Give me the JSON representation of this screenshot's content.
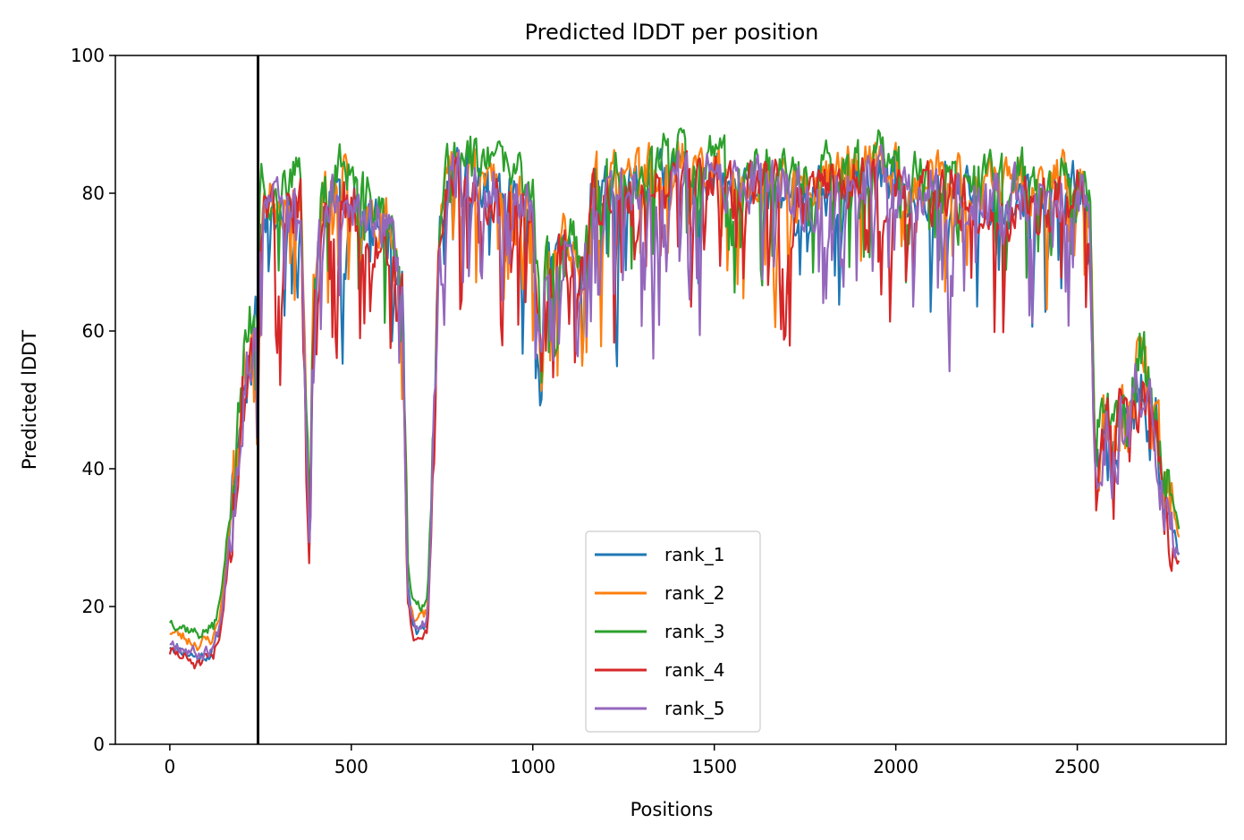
{
  "chart_data": {
    "type": "line",
    "title": "Predicted lDDT per position",
    "xlabel": "Positions",
    "ylabel": "Predicted lDDT",
    "xlim": [
      -150,
      2910
    ],
    "ylim": [
      0,
      100
    ],
    "x_ticks": [
      0,
      500,
      1000,
      1500,
      2000,
      2500
    ],
    "y_ticks": [
      0,
      20,
      40,
      60,
      80,
      100
    ],
    "grid": false,
    "legend_position": "lower-center",
    "vertical_line": {
      "x": 243,
      "color": "#000000"
    },
    "profile": {
      "x": [
        0,
        40,
        80,
        120,
        140,
        160,
        180,
        200,
        220,
        240,
        250,
        280,
        320,
        360,
        375,
        385,
        395,
        420,
        470,
        520,
        560,
        610,
        640,
        655,
        670,
        690,
        710,
        725,
        745,
        780,
        820,
        860,
        900,
        950,
        1000,
        1025,
        1035,
        1050,
        1080,
        1110,
        1140,
        1165,
        1185,
        1200,
        1250,
        1300,
        1350,
        1400,
        1450,
        1500,
        1550,
        1600,
        1650,
        1700,
        1750,
        1800,
        1850,
        1900,
        1950,
        2000,
        2050,
        2100,
        2150,
        2200,
        2250,
        2300,
        2350,
        2400,
        2450,
        2500,
        2520,
        2535,
        2550,
        2580,
        2600,
        2620,
        2640,
        2660,
        2680,
        2700,
        2720,
        2740,
        2760,
        2780
      ],
      "y": [
        15,
        14,
        13,
        14,
        18,
        28,
        38,
        50,
        58,
        62,
        79,
        76,
        77,
        79,
        45,
        27,
        62,
        77,
        80,
        77,
        75,
        73,
        66,
        22,
        17,
        17,
        18,
        40,
        76,
        82,
        83,
        80,
        80,
        79,
        76,
        52,
        68,
        67,
        72,
        70,
        68,
        82,
        78,
        79,
        80,
        80,
        81,
        82,
        80,
        81,
        79,
        80,
        81,
        79,
        78,
        79,
        81,
        82,
        82,
        80,
        79,
        80,
        80,
        79,
        79,
        78,
        79,
        78,
        79,
        80,
        77,
        75,
        40,
        46,
        40,
        48,
        45,
        50,
        54,
        48,
        45,
        36,
        33,
        28
      ]
    },
    "series": [
      {
        "name": "rank_1",
        "color": "#1f77b4",
        "offset": -0.5,
        "seed": 11,
        "amp": 1.0
      },
      {
        "name": "rank_2",
        "color": "#ff7f0e",
        "offset": 1.5,
        "seed": 23,
        "amp": 1.0
      },
      {
        "name": "rank_3",
        "color": "#2ca02c",
        "offset": 3.0,
        "seed": 37,
        "amp": 0.9
      },
      {
        "name": "rank_4",
        "color": "#d62728",
        "offset": -1.5,
        "seed": 51,
        "amp": 1.1
      },
      {
        "name": "rank_5",
        "color": "#9467bd",
        "offset": 0.0,
        "seed": 67,
        "amp": 1.0
      }
    ]
  }
}
